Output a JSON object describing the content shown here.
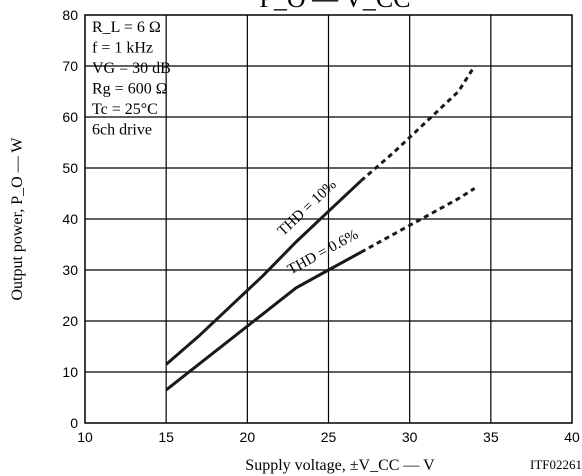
{
  "chart_data": {
    "type": "line",
    "title_visible": "P_O — V_CC",
    "xlabel": "Supply voltage, ±V_CC — V",
    "ylabel": "Output power, P_O — W",
    "code": "ITF02261",
    "xlim": [
      10,
      40
    ],
    "ylim": [
      0,
      80
    ],
    "x_ticks": [
      10,
      15,
      20,
      25,
      30,
      35,
      40
    ],
    "y_ticks": [
      0,
      10,
      20,
      30,
      40,
      50,
      60,
      70,
      80
    ],
    "grid": true,
    "conditions": [
      "R_L = 6 Ω",
      "f = 1 kHz",
      "VG = 30 dB",
      "Rg = 600 Ω",
      "Tc = 25°C",
      "6ch drive"
    ],
    "series": [
      {
        "name": "THD = 10%",
        "solid": [
          [
            15,
            11.5
          ],
          [
            17,
            17
          ],
          [
            19,
            23
          ],
          [
            21,
            29
          ],
          [
            23,
            35.5
          ],
          [
            25,
            41.5
          ],
          [
            27,
            47.5
          ]
        ],
        "dashed": [
          [
            27,
            47.5
          ],
          [
            29,
            53
          ],
          [
            31,
            59
          ],
          [
            33,
            65
          ],
          [
            34,
            70
          ]
        ]
      },
      {
        "name": "THD = 0.6%",
        "solid": [
          [
            15,
            6.5
          ],
          [
            17,
            11.5
          ],
          [
            19,
            16.5
          ],
          [
            21,
            21.5
          ],
          [
            23,
            26.5
          ],
          [
            25,
            30
          ],
          [
            27,
            33.5
          ]
        ],
        "dashed": [
          [
            27,
            33.5
          ],
          [
            29,
            37
          ],
          [
            31,
            40.5
          ],
          [
            33,
            44
          ],
          [
            34,
            46
          ]
        ]
      }
    ]
  }
}
